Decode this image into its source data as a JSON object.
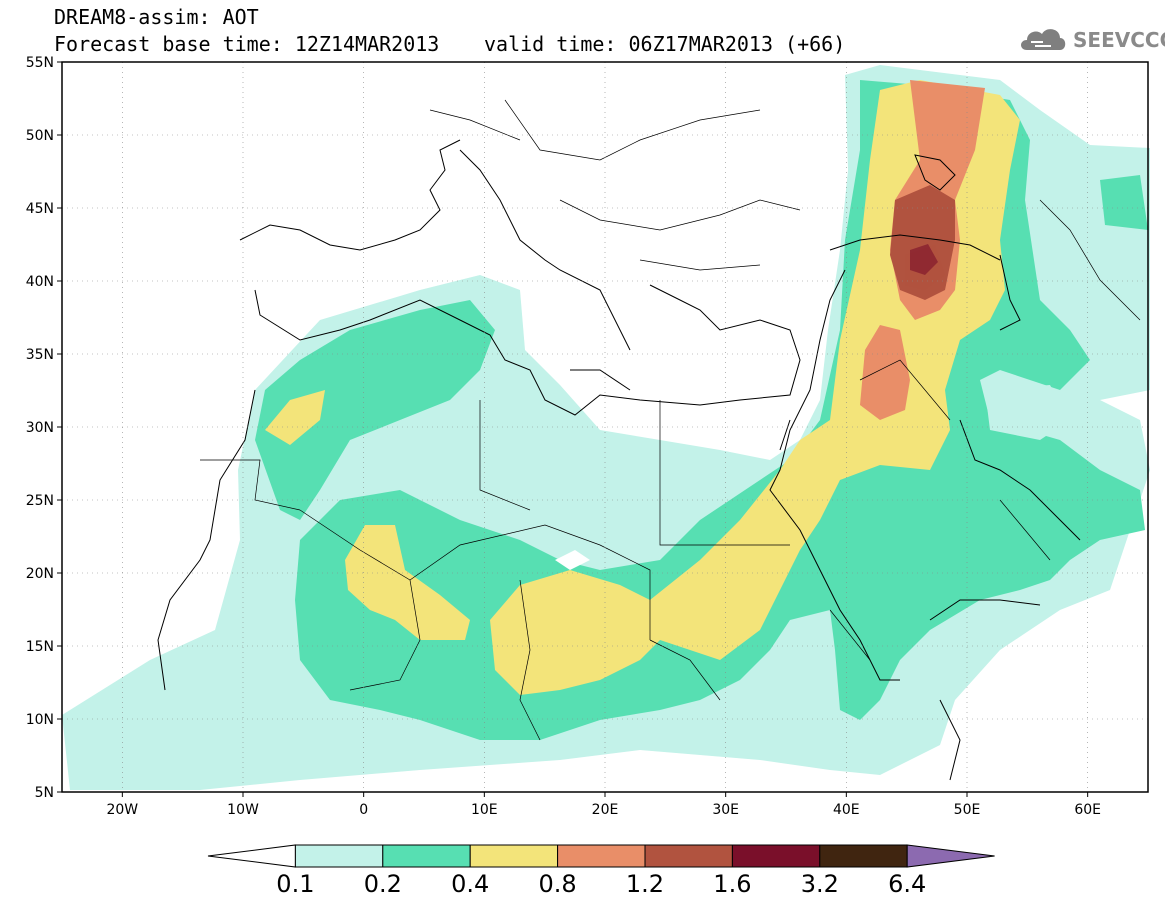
{
  "header": {
    "title": "DREAM8-assim: AOT",
    "base_time": "Forecast base time: 12Z14MAR2013",
    "valid_time": "valid time: 06Z17MAR2013 (+66)"
  },
  "logo": {
    "text": "SEEVCCC",
    "icon": "cloud-icon"
  },
  "map": {
    "lon_range": [
      -25,
      65
    ],
    "lat_range": [
      5,
      55
    ],
    "lat_labels": [
      "55N",
      "50N",
      "45N",
      "40N",
      "35N",
      "30N",
      "25N",
      "20N",
      "15N",
      "10N",
      "5N"
    ],
    "lon_labels": [
      "20W",
      "10W",
      "0",
      "10E",
      "20E",
      "30E",
      "40E",
      "50E",
      "60E"
    ],
    "grid": true
  },
  "colorbar": {
    "labels": [
      "0.1",
      "0.2",
      "0.4",
      "0.8",
      "1.2",
      "1.6",
      "3.2",
      "6.4"
    ],
    "colors": [
      "#ffffff",
      "#c3f2e9",
      "#57dfb2",
      "#f3e47a",
      "#e98e68",
      "#b1533f",
      "#7a0f2a",
      "#402510",
      "#8c6ab0"
    ]
  }
}
